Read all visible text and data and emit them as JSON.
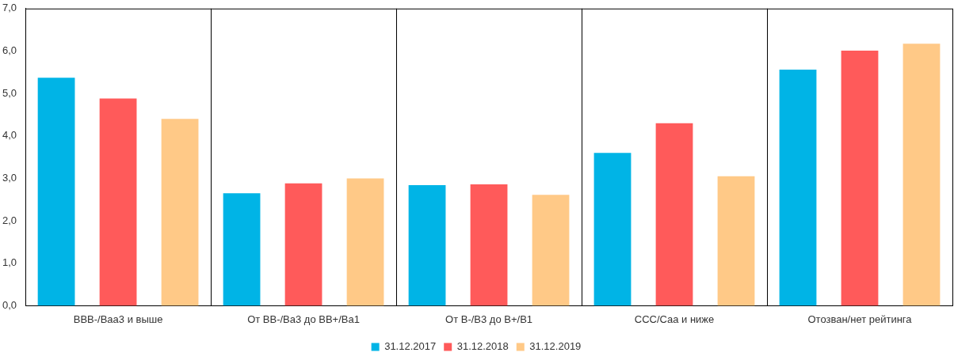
{
  "chart_data": {
    "type": "bar",
    "categories": [
      "BBB-/Baa3 и выше",
      "От BB-/Ba3 до BB+/Ba1",
      "От B-/B3 до B+/B1",
      "CCC/Caa и ниже",
      "Отозван/нет рейтинга"
    ],
    "series": [
      {
        "name": "31.12.2017",
        "color": "#00b4e6",
        "values": [
          5.37,
          2.65,
          2.84,
          3.6,
          5.56
        ]
      },
      {
        "name": "31.12.2018",
        "color": "#ff5a5a",
        "values": [
          4.88,
          2.88,
          2.86,
          4.3,
          6.01
        ]
      },
      {
        "name": "31.12.2019",
        "color": "#ffc987",
        "values": [
          4.4,
          3.0,
          2.61,
          3.05,
          6.17
        ]
      }
    ],
    "ylim": [
      0,
      7
    ],
    "yticks": [
      {
        "value": 0,
        "label": "0,0"
      },
      {
        "value": 1,
        "label": "1,0"
      },
      {
        "value": 2,
        "label": "2,0"
      },
      {
        "value": 3,
        "label": "3,0"
      },
      {
        "value": 4,
        "label": "4,0"
      },
      {
        "value": 5,
        "label": "5,0"
      },
      {
        "value": 6,
        "label": "6,0"
      },
      {
        "value": 7,
        "label": "7,0"
      }
    ],
    "grid": "x",
    "legend": "bottom"
  }
}
